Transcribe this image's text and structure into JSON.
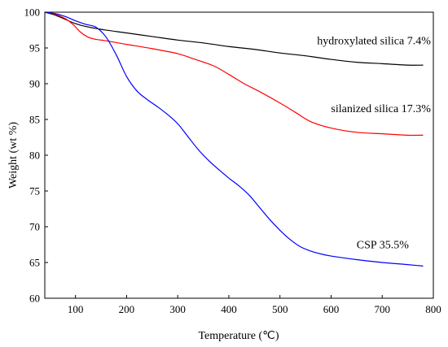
{
  "chart_data": {
    "type": "line",
    "title": "",
    "xlabel": "Temperature (℃)",
    "ylabel": "Weight (wt %)",
    "xlim": [
      40,
      800
    ],
    "ylim": [
      60,
      100
    ],
    "xticks": [
      100,
      200,
      300,
      400,
      500,
      600,
      700,
      800
    ],
    "yticks": [
      60,
      65,
      70,
      75,
      80,
      85,
      90,
      95,
      100
    ],
    "grid": false,
    "legend": "none",
    "series": [
      {
        "name": "hydroxylated silica 7.4%",
        "color": "#000000",
        "x": [
          40,
          60,
          80,
          100,
          120,
          150,
          200,
          250,
          300,
          350,
          400,
          450,
          500,
          550,
          600,
          650,
          700,
          750,
          780
        ],
        "y": [
          100,
          99.6,
          99.0,
          98.4,
          98.0,
          97.6,
          97.1,
          96.6,
          96.1,
          95.7,
          95.2,
          94.8,
          94.3,
          93.9,
          93.4,
          93.0,
          92.8,
          92.6,
          92.6
        ]
      },
      {
        "name": "silanized silica 17.3%",
        "color": "#ff0000",
        "x": [
          40,
          60,
          80,
          95,
          110,
          125,
          140,
          160,
          200,
          250,
          300,
          330,
          370,
          400,
          430,
          460,
          500,
          530,
          560,
          600,
          650,
          700,
          750,
          780
        ],
        "y": [
          100,
          99.7,
          99.1,
          98.3,
          97.2,
          96.5,
          96.2,
          96.0,
          95.5,
          94.9,
          94.2,
          93.5,
          92.5,
          91.3,
          90.0,
          88.9,
          87.3,
          86.0,
          84.7,
          83.8,
          83.2,
          83.0,
          82.8,
          82.8
        ]
      },
      {
        "name": "CSP 35.5%",
        "color": "#0000ff",
        "x": [
          40,
          60,
          80,
          100,
          120,
          140,
          160,
          180,
          200,
          220,
          240,
          260,
          280,
          300,
          320,
          340,
          360,
          380,
          400,
          420,
          440,
          460,
          480,
          500,
          520,
          540,
          560,
          580,
          600,
          650,
          700,
          750,
          780
        ],
        "y": [
          100,
          99.8,
          99.4,
          98.8,
          98.3,
          97.9,
          96.5,
          94.0,
          91.0,
          89.0,
          87.8,
          86.8,
          85.7,
          84.4,
          82.6,
          80.8,
          79.3,
          78.0,
          76.8,
          75.7,
          74.4,
          72.7,
          71.0,
          69.5,
          68.2,
          67.2,
          66.6,
          66.2,
          65.9,
          65.4,
          65.0,
          64.7,
          64.5
        ]
      }
    ],
    "annotations": [
      {
        "text": "hydroxylated silica 7.4%",
        "x": 795,
        "y": 95.5
      },
      {
        "text": "silanized silica 17.3%",
        "x": 795,
        "y": 86.0
      },
      {
        "text": "CSP 35.5%",
        "x": 752,
        "y": 67.0
      }
    ]
  }
}
